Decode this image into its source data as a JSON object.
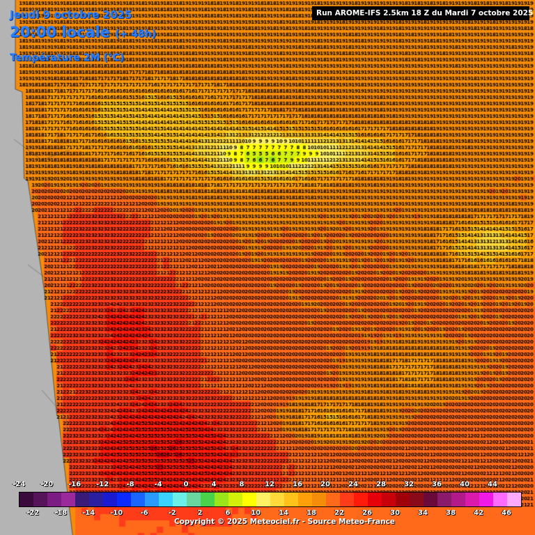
{
  "header": {
    "date_line": "Jeudi 9 octobre 2025",
    "time_line": "20:00 locale",
    "lead_line": "(+ 48h)",
    "parameter_line": "Température 2M (°C)",
    "run_line": "Run AROME-IFS 2.5km 18 Z du Mardi 7 octobre 2025"
  },
  "legend": {
    "top_labels": [
      "-24",
      "-20",
      "-16",
      "-12",
      "-8",
      "-4",
      "0",
      "4",
      "8",
      "12",
      "16",
      "20",
      "24",
      "28",
      "32",
      "36",
      "40",
      "44"
    ],
    "bottom_labels": [
      "-22",
      "-18",
      "-14",
      "-10",
      "-6",
      "-2",
      "2",
      "6",
      "10",
      "14",
      "18",
      "22",
      "26",
      "30",
      "34",
      "38",
      "42",
      "46"
    ],
    "colors": [
      "#3a0a3c",
      "#55135a",
      "#7a1c82",
      "#9a2a9c",
      "#3a1a78",
      "#2a1fa0",
      "#1a1ad0",
      "#0a2aff",
      "#1a64ff",
      "#2a9aff",
      "#3ad2ff",
      "#6af0e6",
      "#6ad6a0",
      "#4ad24a",
      "#9ae61a",
      "#d2f00a",
      "#ffff00",
      "#fff064",
      "#ffda3a",
      "#ffc21a",
      "#ffa00a",
      "#f58c0a",
      "#ff6a1a",
      "#ff3c1a",
      "#ff1a0a",
      "#e6000a",
      "#c8000a",
      "#a0000a",
      "#8a0a1a",
      "#6a0a3a",
      "#8a1a6a",
      "#b21a8a",
      "#da1aaa",
      "#f01ae6",
      "#ff6aff",
      "#ffaaff"
    ]
  },
  "copyright": "Copyright © 2025 Meteociel.fr - Source Meteo-France",
  "map_field": {
    "description_values": "temperature grid",
    "base_value": 19,
    "sea_color": "#f58c0a",
    "land_gray": "#b4b4b4"
  }
}
